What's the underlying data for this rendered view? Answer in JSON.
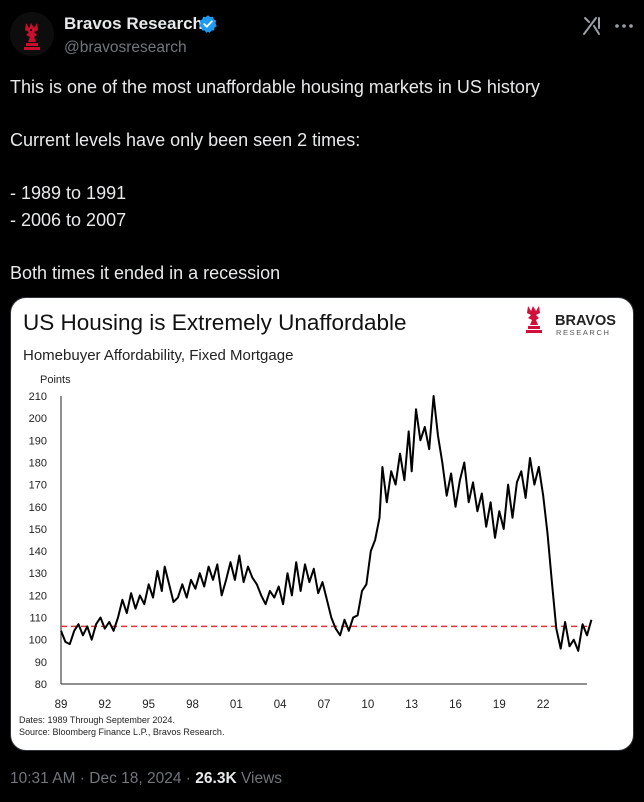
{
  "author": {
    "display_name": "Bravos Research",
    "handle": "@bravosresearch",
    "verified": true,
    "avatar_icon": "knight-logo-icon"
  },
  "tweet": {
    "lines": [
      "This is one of the most unaffordable housing markets in US history",
      "Current levels have only been seen 2 times:",
      "- 1989 to 1991",
      "- 2006 to 2007",
      "Both times it ended in a recession"
    ]
  },
  "meta": {
    "time": "10:31 AM",
    "separator1": " · ",
    "date": "Dec 18, 2024",
    "separator2": " · ",
    "views_count": "26.3K",
    "views_label": " Views"
  },
  "colors": {
    "accent_blue": "#1d9bf0",
    "brand_red": "#c8102e",
    "threshold_red": "#e0353b"
  },
  "chart_data": {
    "type": "line",
    "title": "US Housing is Extremely Unaffordable",
    "subtitle": "Homebuyer Affordability, Fixed Mortgage",
    "brand": "BRAVOS",
    "brand_sub": "RESEARCH",
    "ylabel": "Points",
    "ylim": [
      80,
      210
    ],
    "yticks": [
      80,
      90,
      100,
      110,
      120,
      130,
      140,
      150,
      160,
      170,
      180,
      190,
      200,
      210
    ],
    "xlim": [
      1989,
      2025
    ],
    "xticks": [
      {
        "x": 1989,
        "label": "89"
      },
      {
        "x": 1992,
        "label": "92"
      },
      {
        "x": 1995,
        "label": "95"
      },
      {
        "x": 1998,
        "label": "98"
      },
      {
        "x": 2001,
        "label": "01"
      },
      {
        "x": 2004,
        "label": "04"
      },
      {
        "x": 2007,
        "label": "07"
      },
      {
        "x": 2010,
        "label": "10"
      },
      {
        "x": 2013,
        "label": "13"
      },
      {
        "x": 2016,
        "label": "16"
      },
      {
        "x": 2019,
        "label": "19"
      },
      {
        "x": 2022,
        "label": "22"
      }
    ],
    "threshold": 106,
    "footnote_dates": "Dates: 1989 Through September 2024.",
    "footnote_source": "Source: Bloomberg Finance L.P., Bravos Research.",
    "series": [
      {
        "name": "Homebuyer Affordability, Fixed Mortgage",
        "points": [
          [
            1989.0,
            104
          ],
          [
            1989.3,
            99
          ],
          [
            1989.6,
            98
          ],
          [
            1989.9,
            104
          ],
          [
            1990.2,
            107
          ],
          [
            1990.5,
            102
          ],
          [
            1990.8,
            106
          ],
          [
            1991.1,
            100
          ],
          [
            1991.4,
            107
          ],
          [
            1991.7,
            110
          ],
          [
            1992.0,
            105
          ],
          [
            1992.3,
            108
          ],
          [
            1992.6,
            104
          ],
          [
            1992.9,
            110
          ],
          [
            1993.2,
            118
          ],
          [
            1993.5,
            112
          ],
          [
            1993.8,
            121
          ],
          [
            1994.1,
            114
          ],
          [
            1994.4,
            120
          ],
          [
            1994.7,
            116
          ],
          [
            1995.0,
            125
          ],
          [
            1995.3,
            119
          ],
          [
            1995.6,
            131
          ],
          [
            1995.9,
            122
          ],
          [
            1996.1,
            133
          ],
          [
            1996.4,
            125
          ],
          [
            1996.7,
            117
          ],
          [
            1997.0,
            119
          ],
          [
            1997.3,
            125
          ],
          [
            1997.6,
            119
          ],
          [
            1997.9,
            127
          ],
          [
            1998.2,
            123
          ],
          [
            1998.5,
            130
          ],
          [
            1998.8,
            124
          ],
          [
            1999.1,
            133
          ],
          [
            1999.4,
            127
          ],
          [
            1999.7,
            134
          ],
          [
            2000.0,
            120
          ],
          [
            2000.3,
            127
          ],
          [
            2000.6,
            135
          ],
          [
            2000.9,
            127
          ],
          [
            2001.2,
            138
          ],
          [
            2001.5,
            126
          ],
          [
            2001.8,
            133
          ],
          [
            2002.1,
            128
          ],
          [
            2002.4,
            125
          ],
          [
            2002.7,
            120
          ],
          [
            2003.0,
            116
          ],
          [
            2003.3,
            122
          ],
          [
            2003.6,
            119
          ],
          [
            2003.9,
            124
          ],
          [
            2004.2,
            116
          ],
          [
            2004.5,
            130
          ],
          [
            2004.8,
            120
          ],
          [
            2005.1,
            135
          ],
          [
            2005.4,
            122
          ],
          [
            2005.7,
            134
          ],
          [
            2006.0,
            126
          ],
          [
            2006.3,
            132
          ],
          [
            2006.6,
            121
          ],
          [
            2006.9,
            126
          ],
          [
            2007.2,
            118
          ],
          [
            2007.5,
            110
          ],
          [
            2007.8,
            105
          ],
          [
            2008.1,
            102
          ],
          [
            2008.4,
            109
          ],
          [
            2008.7,
            104
          ],
          [
            2009.0,
            110
          ],
          [
            2009.3,
            111
          ],
          [
            2009.6,
            122
          ],
          [
            2009.9,
            125
          ],
          [
            2010.2,
            140
          ],
          [
            2010.5,
            145
          ],
          [
            2010.8,
            155
          ],
          [
            2011.0,
            178
          ],
          [
            2011.3,
            162
          ],
          [
            2011.6,
            176
          ],
          [
            2011.9,
            170
          ],
          [
            2012.2,
            184
          ],
          [
            2012.5,
            172
          ],
          [
            2012.8,
            194
          ],
          [
            2013.0,
            176
          ],
          [
            2013.3,
            204
          ],
          [
            2013.6,
            190
          ],
          [
            2013.9,
            196
          ],
          [
            2014.2,
            186
          ],
          [
            2014.5,
            210
          ],
          [
            2014.8,
            192
          ],
          [
            2015.1,
            180
          ],
          [
            2015.4,
            165
          ],
          [
            2015.7,
            175
          ],
          [
            2016.0,
            160
          ],
          [
            2016.3,
            172
          ],
          [
            2016.6,
            180
          ],
          [
            2016.9,
            162
          ],
          [
            2017.2,
            171
          ],
          [
            2017.5,
            158
          ],
          [
            2017.8,
            166
          ],
          [
            2018.1,
            151
          ],
          [
            2018.4,
            162
          ],
          [
            2018.7,
            146
          ],
          [
            2019.0,
            158
          ],
          [
            2019.3,
            150
          ],
          [
            2019.6,
            170
          ],
          [
            2019.9,
            155
          ],
          [
            2020.2,
            171
          ],
          [
            2020.5,
            176
          ],
          [
            2020.8,
            164
          ],
          [
            2021.1,
            182
          ],
          [
            2021.4,
            170
          ],
          [
            2021.7,
            178
          ],
          [
            2022.0,
            165
          ],
          [
            2022.3,
            148
          ],
          [
            2022.6,
            126
          ],
          [
            2022.9,
            105
          ],
          [
            2023.2,
            96
          ],
          [
            2023.5,
            108
          ],
          [
            2023.8,
            97
          ],
          [
            2024.1,
            100
          ],
          [
            2024.4,
            95
          ],
          [
            2024.7,
            107
          ],
          [
            2025.0,
            102
          ],
          [
            2025.3,
            109
          ]
        ]
      }
    ]
  }
}
